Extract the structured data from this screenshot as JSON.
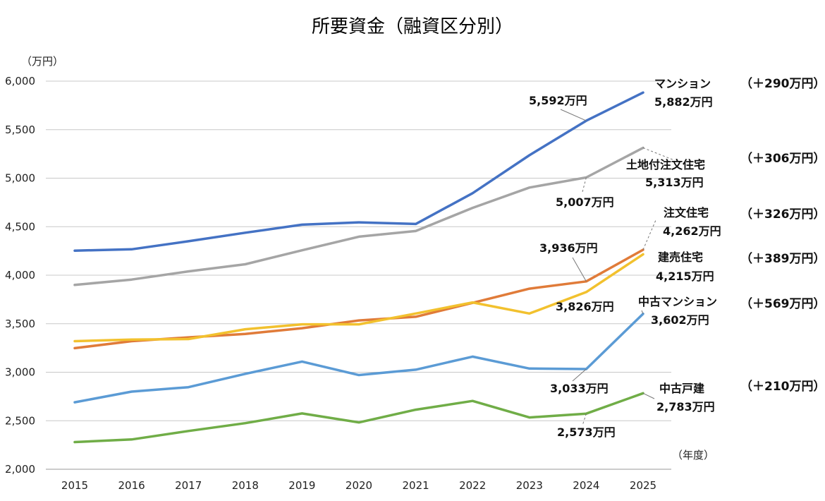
{
  "chart_data": {
    "type": "line",
    "title": "所要資金（融資区分別）",
    "y_unit": "（万円）",
    "x_unit": "（年度）",
    "categories": [
      "2015",
      "2016",
      "2017",
      "2018",
      "2019",
      "2020",
      "2021",
      "2022",
      "2023",
      "2024",
      "2025"
    ],
    "ylim": [
      2000,
      6000
    ],
    "yticks": [
      2000,
      2500,
      3000,
      3500,
      4000,
      4500,
      5000,
      5500,
      6000
    ],
    "ytick_labels": [
      "2,000",
      "2,500",
      "3,000",
      "3,500",
      "4,000",
      "4,500",
      "5,000",
      "5,500",
      "6,000"
    ],
    "grid": true,
    "series": [
      {
        "name": "マンション",
        "color": "#4472C4",
        "values": [
          4253,
          4267,
          4350,
          4438,
          4521,
          4545,
          4528,
          4845,
          5236,
          5592,
          5882
        ]
      },
      {
        "name": "土地付注文住宅",
        "color": "#A5A5A5",
        "values": [
          3900,
          3955,
          4039,
          4113,
          4257,
          4397,
          4455,
          4694,
          4903,
          5007,
          5313
        ]
      },
      {
        "name": "注文住宅",
        "color": "#E07B39",
        "values": [
          3248,
          3320,
          3359,
          3395,
          3454,
          3534,
          3572,
          3715,
          3861,
          3936,
          4262
        ]
      },
      {
        "name": "建売住宅",
        "color": "#F2C12E",
        "values": [
          3320,
          3337,
          3342,
          3443,
          3494,
          3494,
          3605,
          3719,
          3605,
          3826,
          4215
        ]
      },
      {
        "name": "中古マンション",
        "color": "#5B9BD5",
        "values": [
          2690,
          2800,
          2846,
          2983,
          3110,
          2971,
          3026,
          3161,
          3038,
          3033,
          3602
        ]
      },
      {
        "name": "中古戸建",
        "color": "#70AD47",
        "values": [
          2280,
          2307,
          2394,
          2475,
          2575,
          2482,
          2614,
          2704,
          2534,
          2573,
          2783
        ]
      }
    ],
    "annotations": [
      {
        "text": "5,592万円",
        "series": "マンション",
        "year": "2024"
      },
      {
        "text": "5,007万円",
        "series": "土地付注文住宅",
        "year": "2024"
      },
      {
        "text": "3,936万円",
        "series": "注文住宅",
        "year": "2024"
      },
      {
        "text": "3,826万円",
        "series": "建売住宅",
        "year": "2024"
      },
      {
        "text": "3,033万円",
        "series": "中古マンション",
        "year": "2024"
      },
      {
        "text": "2,573万円",
        "series": "中古戸建",
        "year": "2024"
      }
    ],
    "end_labels": [
      {
        "series": "マンション",
        "value_text": "5,882万円",
        "delta": "（＋290万円）"
      },
      {
        "series": "土地付注文住宅",
        "value_text": "5,313万円",
        "delta": "（＋306万円）"
      },
      {
        "series": "注文住宅",
        "value_text": "4,262万円",
        "delta": "（＋326万円）"
      },
      {
        "series": "建売住宅",
        "value_text": "4,215万円",
        "delta": "（＋389万円）"
      },
      {
        "series": "中古マンション",
        "value_text": "3,602万円",
        "delta": "（＋569万円）"
      },
      {
        "series": "中古戸建",
        "value_text": "2,783万円",
        "delta": "（＋210万円）"
      }
    ]
  }
}
